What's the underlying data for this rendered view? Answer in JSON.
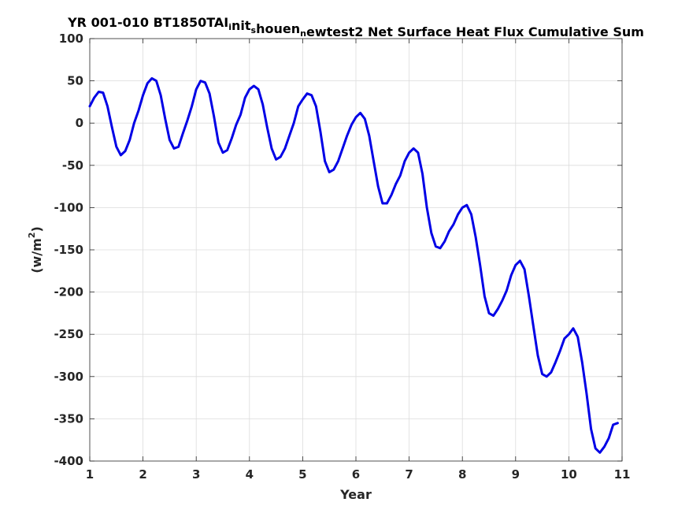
{
  "chart_data": {
    "type": "line",
    "title_parts": [
      {
        "text": "YR 001-010 BT1850TAI",
        "sub": false
      },
      {
        "text": "i",
        "sub": true
      },
      {
        "text": "nit",
        "sub": false
      },
      {
        "text": "s",
        "sub": true
      },
      {
        "text": "houen",
        "sub": false
      },
      {
        "text": "n",
        "sub": true
      },
      {
        "text": "ewtest2 Net Surface Heat Flux  Cumulative Sum",
        "sub": false
      }
    ],
    "xlabel": "Year",
    "ylabel": "(w/m",
    "ylabel_sup": "2",
    "ylabel_close": ")",
    "xlim": [
      1,
      11
    ],
    "ylim": [
      -400,
      100
    ],
    "xticks": [
      1,
      2,
      3,
      4,
      5,
      6,
      7,
      8,
      9,
      10,
      11
    ],
    "yticks": [
      100,
      50,
      0,
      -50,
      -100,
      -150,
      -200,
      -250,
      -300,
      -350,
      -400
    ],
    "grid": true,
    "color": "#0000e6",
    "series": [
      {
        "x": [
          1.0,
          1.083,
          1.167,
          1.25,
          1.333,
          1.417,
          1.5,
          1.583,
          1.667,
          1.75,
          1.833,
          1.917,
          2.0,
          2.083,
          2.167,
          2.25,
          2.333,
          2.417,
          2.5,
          2.583,
          2.667,
          2.75,
          2.833,
          2.917,
          3.0,
          3.083,
          3.167,
          3.25,
          3.333,
          3.417,
          3.5,
          3.583,
          3.667,
          3.75,
          3.833,
          3.917,
          4.0,
          4.083,
          4.167,
          4.25,
          4.333,
          4.417,
          4.5,
          4.583,
          4.667,
          4.75,
          4.833,
          4.917,
          5.0,
          5.083,
          5.167,
          5.25,
          5.333,
          5.417,
          5.5,
          5.583,
          5.667,
          5.75,
          5.833,
          5.917,
          6.0,
          6.083,
          6.167,
          6.25,
          6.333,
          6.417,
          6.5,
          6.583,
          6.667,
          6.75,
          6.833,
          6.917,
          7.0,
          7.083,
          7.167,
          7.25,
          7.333,
          7.417,
          7.5,
          7.583,
          7.667,
          7.75,
          7.833,
          7.917,
          8.0,
          8.083,
          8.167,
          8.25,
          8.333,
          8.417,
          8.5,
          8.583,
          8.667,
          8.75,
          8.833,
          8.917,
          9.0,
          9.083,
          9.167,
          9.25,
          9.333,
          9.417,
          9.5,
          9.583,
          9.667,
          9.75,
          9.833,
          9.917,
          10.0,
          10.083,
          10.167,
          10.25,
          10.333,
          10.417,
          10.5,
          10.583,
          10.667,
          10.75,
          10.833,
          10.917
        ],
        "values": [
          20,
          30,
          37,
          36,
          20,
          -5,
          -28,
          -38,
          -33,
          -20,
          0,
          15,
          33,
          47,
          53,
          50,
          33,
          5,
          -20,
          -30,
          -28,
          -12,
          3,
          20,
          40,
          50,
          48,
          35,
          8,
          -23,
          -35,
          -32,
          -18,
          -2,
          10,
          30,
          40,
          44,
          40,
          22,
          -5,
          -30,
          -43,
          -40,
          -30,
          -15,
          0,
          20,
          28,
          35,
          33,
          20,
          -10,
          -45,
          -58,
          -55,
          -45,
          -30,
          -15,
          -2,
          7,
          12,
          5,
          -15,
          -45,
          -75,
          -95,
          -95,
          -85,
          -72,
          -62,
          -45,
          -35,
          -30,
          -35,
          -60,
          -100,
          -130,
          -146,
          -148,
          -140,
          -128,
          -120,
          -108,
          -100,
          -97,
          -108,
          -135,
          -168,
          -205,
          -225,
          -228,
          -220,
          -210,
          -198,
          -180,
          -168,
          -163,
          -173,
          -205,
          -240,
          -275,
          -297,
          -300,
          -295,
          -283,
          -270,
          -255,
          -250,
          -243,
          -253,
          -283,
          -320,
          -362,
          -385,
          -390,
          -383,
          -373,
          -357,
          -355
        ]
      }
    ]
  }
}
